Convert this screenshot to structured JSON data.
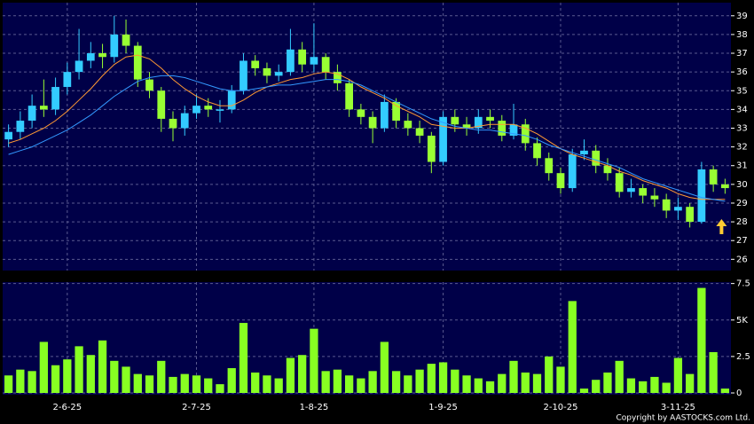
{
  "chart_data": {
    "type": "candlestick",
    "source": "Copyright by AASTOCKS.com Ltd.",
    "categories": [
      null,
      null,
      null,
      null,
      null,
      "2-6-25",
      null,
      null,
      null,
      null,
      null,
      null,
      null,
      null,
      null,
      null,
      "2-7-25",
      null,
      null,
      null,
      null,
      null,
      null,
      null,
      null,
      null,
      "1-8-25",
      null,
      null,
      null,
      null,
      null,
      null,
      null,
      null,
      null,
      null,
      "1-9-25",
      null,
      null,
      null,
      null,
      null,
      null,
      null,
      null,
      null,
      "2-10-25",
      null,
      null,
      null,
      null,
      null,
      null,
      null,
      null,
      null,
      "3-11-25",
      null,
      null,
      null,
      null
    ],
    "open": [
      32.4,
      32.8,
      33.4,
      34.2,
      34.0,
      35.2,
      36.0,
      36.6,
      37.0,
      36.8,
      38.0,
      37.4,
      35.6,
      35.0,
      33.5,
      33.0,
      33.8,
      34.2,
      34.0,
      34.0,
      35.0,
      36.6,
      36.2,
      35.8,
      36.0,
      37.2,
      36.4,
      36.8,
      36.0,
      35.4,
      34.0,
      33.6,
      33.0,
      34.4,
      33.4,
      33.0,
      32.6,
      31.2,
      33.6,
      33.2,
      33.0,
      33.6,
      33.4,
      32.6,
      33.2,
      32.2,
      31.4,
      30.6,
      29.8,
      31.6,
      31.8,
      31.0,
      30.6,
      29.6,
      29.8,
      29.4,
      29.2,
      28.6,
      28.8,
      28.0,
      30.8,
      30.0
    ],
    "high": [
      33.2,
      33.9,
      34.8,
      35.6,
      35.7,
      36.5,
      38.3,
      37.6,
      37.5,
      39.0,
      38.8,
      37.6,
      36.0,
      35.2,
      33.9,
      34.2,
      34.8,
      34.6,
      34.5,
      35.3,
      37.0,
      36.9,
      36.5,
      36.4,
      38.3,
      37.6,
      38.6,
      37.0,
      36.4,
      35.6,
      34.3,
      33.9,
      34.8,
      34.6,
      33.8,
      33.4,
      32.8,
      33.9,
      34.0,
      33.6,
      34.0,
      34.0,
      33.7,
      34.3,
      33.5,
      32.5,
      31.7,
      30.9,
      31.9,
      32.4,
      32.1,
      31.4,
      30.9,
      30.3,
      30.0,
      29.8,
      29.5,
      29.3,
      29.0,
      31.2,
      31.0,
      30.3
    ],
    "low": [
      32.0,
      32.4,
      33.0,
      33.6,
      33.7,
      34.8,
      35.6,
      36.2,
      36.2,
      36.5,
      37.0,
      35.2,
      34.6,
      32.8,
      32.3,
      32.6,
      33.5,
      33.6,
      33.3,
      33.8,
      34.8,
      35.8,
      35.4,
      35.5,
      35.8,
      36.0,
      36.0,
      35.6,
      35.0,
      33.6,
      33.2,
      32.2,
      32.8,
      33.0,
      32.6,
      32.2,
      30.6,
      31.0,
      32.8,
      32.6,
      32.7,
      33.0,
      32.3,
      32.4,
      31.8,
      31.0,
      30.2,
      29.5,
      29.6,
      31.3,
      30.6,
      30.2,
      29.3,
      29.3,
      29.0,
      28.8,
      28.2,
      28.1,
      27.7,
      27.9,
      29.6,
      29.5
    ],
    "close": [
      32.8,
      33.4,
      34.2,
      34.0,
      35.2,
      36.0,
      36.6,
      37.0,
      36.8,
      38.0,
      37.4,
      35.6,
      35.0,
      33.5,
      33.0,
      33.8,
      34.2,
      34.0,
      34.0,
      35.0,
      36.6,
      36.2,
      35.8,
      36.0,
      37.2,
      36.4,
      36.8,
      36.0,
      35.4,
      34.0,
      33.6,
      33.0,
      34.4,
      33.4,
      33.0,
      32.6,
      31.2,
      33.6,
      33.2,
      33.0,
      33.6,
      33.4,
      32.6,
      33.2,
      32.2,
      31.4,
      30.6,
      29.8,
      31.6,
      31.8,
      31.0,
      30.6,
      29.6,
      29.8,
      29.4,
      29.2,
      28.6,
      28.8,
      28.0,
      30.8,
      30.0,
      29.8
    ],
    "ma10": [
      32.2,
      32.4,
      32.7,
      33.0,
      33.4,
      33.9,
      34.5,
      35.1,
      35.8,
      36.4,
      36.8,
      36.9,
      36.7,
      36.2,
      35.6,
      35.1,
      34.7,
      34.4,
      34.2,
      34.2,
      34.5,
      34.9,
      35.2,
      35.4,
      35.6,
      35.7,
      35.9,
      36.0,
      35.9,
      35.6,
      35.2,
      34.9,
      34.6,
      34.2,
      33.9,
      33.6,
      33.2,
      33.1,
      33.0,
      33.0,
      33.1,
      33.2,
      33.2,
      33.2,
      33.0,
      32.7,
      32.3,
      31.9,
      31.6,
      31.4,
      31.2,
      31.0,
      30.7,
      30.5,
      30.2,
      30.0,
      29.8,
      29.5,
      29.3,
      29.2,
      29.2,
      29.2
    ],
    "ma20": [
      31.6,
      31.8,
      32.0,
      32.3,
      32.6,
      32.9,
      33.3,
      33.7,
      34.2,
      34.7,
      35.1,
      35.5,
      35.7,
      35.8,
      35.8,
      35.7,
      35.5,
      35.3,
      35.1,
      35.0,
      35.0,
      35.1,
      35.2,
      35.3,
      35.3,
      35.4,
      35.5,
      35.6,
      35.6,
      35.5,
      35.3,
      35.0,
      34.7,
      34.4,
      34.1,
      33.8,
      33.5,
      33.3,
      33.1,
      33.0,
      32.9,
      32.9,
      32.8,
      32.7,
      32.6,
      32.4,
      32.1,
      31.9,
      31.7,
      31.5,
      31.3,
      31.1,
      30.9,
      30.6,
      30.3,
      30.1,
      29.9,
      29.7,
      29.5,
      29.3,
      29.2,
      29.1
    ],
    "volume": [
      1.2,
      1.6,
      1.5,
      3.5,
      1.9,
      2.3,
      3.2,
      2.6,
      3.6,
      2.2,
      1.8,
      1.3,
      1.2,
      2.2,
      1.1,
      1.3,
      1.2,
      1.0,
      0.6,
      1.7,
      4.8,
      1.4,
      1.2,
      1.0,
      2.4,
      2.6,
      4.4,
      1.5,
      1.6,
      1.2,
      1.0,
      1.5,
      3.5,
      1.5,
      1.2,
      1.6,
      2.0,
      2.1,
      1.6,
      1.2,
      1.0,
      0.8,
      1.3,
      2.2,
      1.4,
      1.3,
      2.5,
      1.8,
      6.3,
      0.3,
      0.9,
      1.4,
      2.2,
      1.0,
      0.8,
      1.1,
      0.7,
      2.4,
      1.3,
      7.2,
      2.8,
      0.3
    ],
    "up_color": "#33ccff",
    "down_color": "#99ff33",
    "ma10_color": "#ff9933",
    "ma20_color": "#3399ff",
    "volume_color": "#88ff22",
    "ylim": [
      25.4,
      39.7
    ],
    "yticks": [
      26,
      27,
      28,
      29,
      30,
      31,
      32,
      33,
      34,
      35,
      36,
      37,
      38,
      39
    ],
    "y2lim": [
      0,
      7.6
    ],
    "y2ticks": [
      0,
      2.5,
      {
        "value": 5,
        "label": "5K"
      },
      7.5
    ],
    "grid": true
  }
}
